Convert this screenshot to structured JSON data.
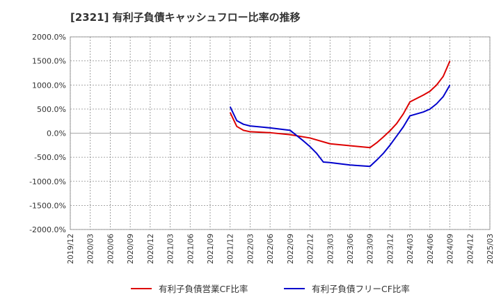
{
  "chart_data": {
    "type": "line",
    "title": "[2321]  有利子負債キャッシュフロー比率の推移",
    "xlabel": "",
    "ylabel": "",
    "ylim": [
      -2000,
      2000
    ],
    "yticks": [
      2000,
      1500,
      1000,
      500,
      0,
      -500,
      -1000,
      -1500,
      -2000
    ],
    "ytick_labels": [
      "2000.0%",
      "1500.0%",
      "1000.0%",
      "500.0%",
      "0.0%",
      "-500.0%",
      "-1000.0%",
      "-1500.0%",
      "-2000.0%"
    ],
    "xlim": [
      "2019/12",
      "2025/03"
    ],
    "xtick_labels": [
      "2019/12",
      "2020/03",
      "2020/06",
      "2020/09",
      "2020/12",
      "2021/03",
      "2021/06",
      "2021/09",
      "2021/12",
      "2022/03",
      "2022/06",
      "2022/09",
      "2022/12",
      "2023/03",
      "2023/06",
      "2023/09",
      "2023/12",
      "2024/03",
      "2024/06",
      "2024/09",
      "2024/12",
      "2025/03"
    ],
    "grid": true,
    "legend_position": "bottom",
    "series": [
      {
        "name": "有利子負債営業CF比率",
        "color": "#dd0000",
        "x": [
          "2021/12",
          "2022/01",
          "2022/02",
          "2022/03",
          "2022/06",
          "2022/09",
          "2022/12",
          "2023/03",
          "2023/06",
          "2023/09",
          "2023/10",
          "2023/11",
          "2023/12",
          "2024/01",
          "2024/02",
          "2024/03",
          "2024/04",
          "2024/05",
          "2024/06",
          "2024/07",
          "2024/08",
          "2024/09"
        ],
        "values": [
          430,
          140,
          60,
          30,
          10,
          -30,
          -100,
          -220,
          -260,
          -300,
          -200,
          -80,
          50,
          200,
          400,
          650,
          720,
          790,
          870,
          1000,
          1180,
          1500
        ]
      },
      {
        "name": "有利子負債フリーCF比率",
        "color": "#0000cc",
        "x": [
          "2021/12",
          "2022/01",
          "2022/02",
          "2022/03",
          "2022/06",
          "2022/09",
          "2022/10",
          "2022/11",
          "2022/12",
          "2023/01",
          "2023/02",
          "2023/03",
          "2023/06",
          "2023/09",
          "2023/10",
          "2023/11",
          "2023/12",
          "2024/01",
          "2024/02",
          "2024/03",
          "2024/04",
          "2024/05",
          "2024/06",
          "2024/07",
          "2024/08",
          "2024/09"
        ],
        "values": [
          550,
          260,
          185,
          150,
          110,
          60,
          -50,
          -160,
          -280,
          -420,
          -600,
          -610,
          -660,
          -690,
          -560,
          -420,
          -250,
          -60,
          130,
          360,
          400,
          440,
          500,
          610,
          760,
          1000
        ]
      }
    ]
  }
}
